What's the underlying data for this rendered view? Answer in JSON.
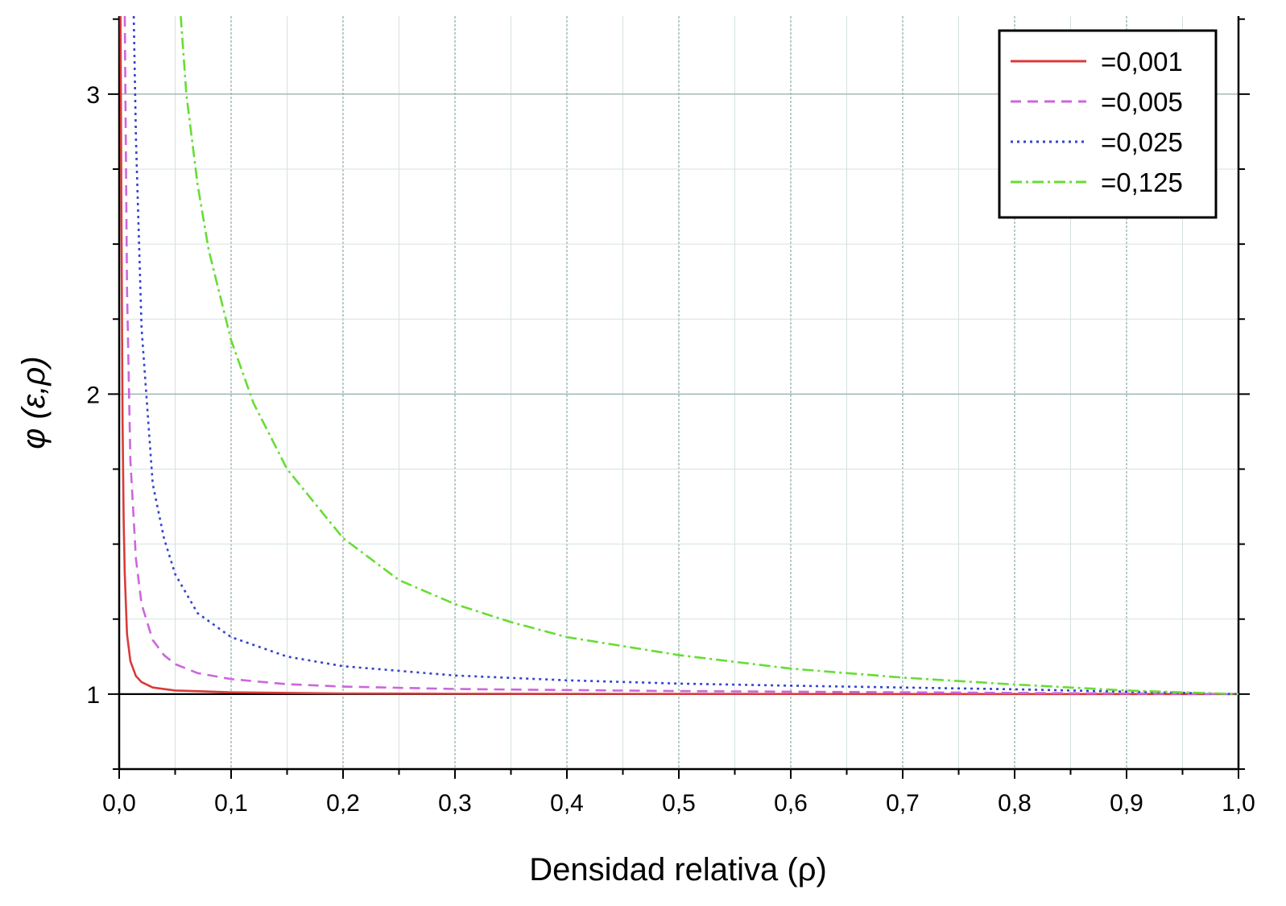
{
  "chart_data": {
    "type": "line",
    "xlabel": "Densidad relativa (ρ)",
    "ylabel": "φ (ε,ρ)",
    "xlim": [
      0,
      1
    ],
    "ylim": [
      0.75,
      3.26
    ],
    "x_ticks": [
      {
        "value": 0.0,
        "label": "0,0"
      },
      {
        "value": 0.1,
        "label": "0,1"
      },
      {
        "value": 0.2,
        "label": "0,2"
      },
      {
        "value": 0.3,
        "label": "0,3"
      },
      {
        "value": 0.4,
        "label": "0,4"
      },
      {
        "value": 0.5,
        "label": "0,5"
      },
      {
        "value": 0.6,
        "label": "0,6"
      },
      {
        "value": 0.7,
        "label": "0,7"
      },
      {
        "value": 0.8,
        "label": "0,8"
      },
      {
        "value": 0.9,
        "label": "0,9"
      },
      {
        "value": 1.0,
        "label": "1,0"
      }
    ],
    "y_ticks": [
      {
        "value": 1,
        "label": "1"
      },
      {
        "value": 2,
        "label": "2"
      },
      {
        "value": 3,
        "label": "3"
      }
    ],
    "grid": true,
    "legend_position": "top-right",
    "series": [
      {
        "name": "=0,001",
        "color": "#d93a3a",
        "style": "solid",
        "x": [
          0.0012,
          0.002,
          0.003,
          0.004,
          0.005,
          0.007,
          0.01,
          0.015,
          0.02,
          0.03,
          0.05,
          0.1,
          0.2,
          0.3,
          0.5,
          0.7,
          1.0
        ],
        "y": [
          3.26,
          2.6,
          1.92,
          1.58,
          1.4,
          1.2,
          1.11,
          1.06,
          1.04,
          1.022,
          1.012,
          1.006,
          1.002,
          1.001,
          1.0005,
          1.0002,
          1.0
        ]
      },
      {
        "name": "=0,005",
        "color": "#cc66dd",
        "style": "dashed",
        "x": [
          0.005,
          0.007,
          0.01,
          0.015,
          0.02,
          0.03,
          0.04,
          0.05,
          0.07,
          0.1,
          0.15,
          0.2,
          0.3,
          0.5,
          0.7,
          1.0
        ],
        "y": [
          3.26,
          2.35,
          1.78,
          1.45,
          1.3,
          1.18,
          1.13,
          1.1,
          1.07,
          1.05,
          1.033,
          1.025,
          1.017,
          1.01,
          1.006,
          1.0
        ]
      },
      {
        "name": "=0,025",
        "color": "#3344cc",
        "style": "dotted",
        "x": [
          0.013,
          0.015,
          0.02,
          0.03,
          0.04,
          0.05,
          0.07,
          0.1,
          0.15,
          0.2,
          0.3,
          0.4,
          0.5,
          0.6,
          0.7,
          0.8,
          0.9,
          1.0
        ],
        "y": [
          3.26,
          2.85,
          2.22,
          1.7,
          1.52,
          1.4,
          1.27,
          1.19,
          1.125,
          1.093,
          1.062,
          1.046,
          1.035,
          1.028,
          1.022,
          1.016,
          1.008,
          1.0
        ]
      },
      {
        "name": "=0,125",
        "color": "#66dd33",
        "style": "dashdot",
        "x": [
          0.055,
          0.06,
          0.07,
          0.08,
          0.1,
          0.12,
          0.15,
          0.2,
          0.25,
          0.3,
          0.35,
          0.4,
          0.45,
          0.5,
          0.6,
          0.7,
          0.8,
          0.9,
          1.0
        ],
        "y": [
          3.26,
          3.0,
          2.7,
          2.48,
          2.18,
          1.97,
          1.75,
          1.52,
          1.38,
          1.3,
          1.24,
          1.19,
          1.16,
          1.13,
          1.085,
          1.055,
          1.032,
          1.012,
          1.0
        ]
      }
    ]
  }
}
